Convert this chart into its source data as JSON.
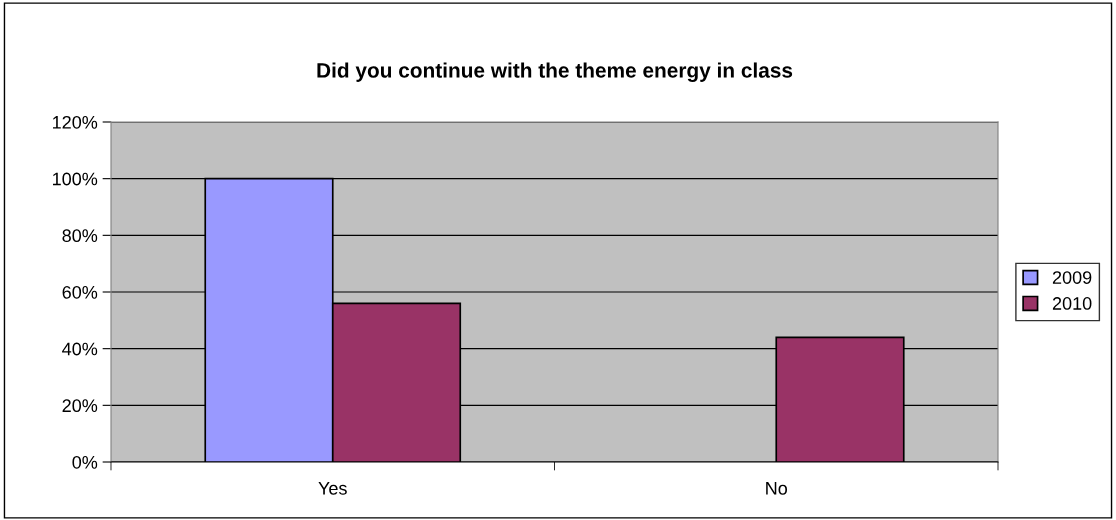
{
  "chart_data": {
    "type": "bar",
    "title": "Did you continue with the theme energy in class",
    "categories": [
      "Yes",
      "No"
    ],
    "series": [
      {
        "name": "2009",
        "color": "#9999ff",
        "values": [
          100,
          null
        ]
      },
      {
        "name": "2010",
        "color": "#993366",
        "values": [
          56,
          44
        ]
      }
    ],
    "ylim": [
      0,
      120
    ],
    "yticks": [
      {
        "value": 0,
        "label": "0%"
      },
      {
        "value": 20,
        "label": "20%"
      },
      {
        "value": 40,
        "label": "40%"
      },
      {
        "value": 60,
        "label": "60%"
      },
      {
        "value": 80,
        "label": "80%"
      },
      {
        "value": 100,
        "label": "100%"
      },
      {
        "value": 120,
        "label": "120%"
      }
    ],
    "grid": "y",
    "legend": "right"
  }
}
